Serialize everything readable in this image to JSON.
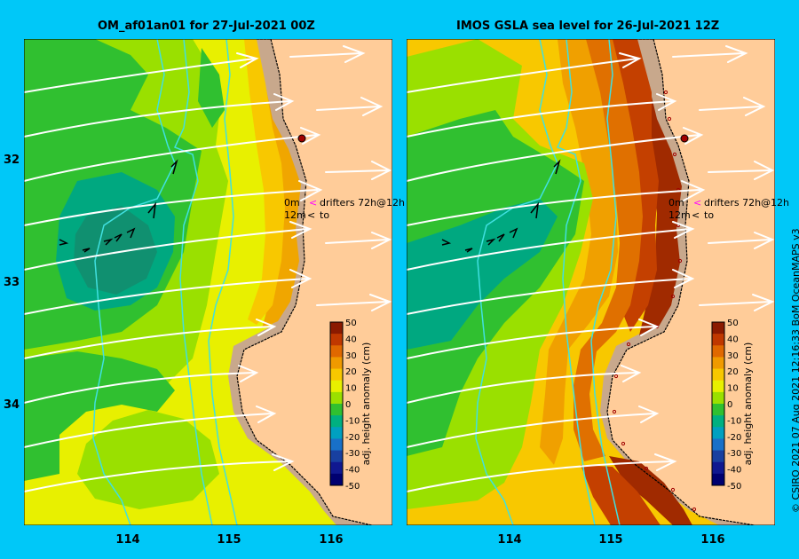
{
  "panels": [
    {
      "title": "OM_af01an01 for 27-Jul-2021 00Z"
    },
    {
      "title": "IMOS GSLA sea level  for 26-Jul-2021 12Z"
    }
  ],
  "lat_ticks": [
    "32",
    "33",
    "34"
  ],
  "lon_ticks": [
    "114",
    "115",
    "116"
  ],
  "legend": {
    "drifter_line1_value": "0m",
    "drifter_line1_text": "drifters 72h@12h",
    "drifter_line2_value": "12m",
    "drifter_line2_text": "to",
    "drifter_colors": {
      "line1": "#ff00ff",
      "line2": "#000000"
    }
  },
  "colorbar": {
    "label": "adj. height anomaly (cm)",
    "ticks": [
      "50",
      "40",
      "30",
      "20",
      "10",
      "0",
      "-10",
      "-20",
      "-30",
      "-40",
      "-50"
    ],
    "colors": [
      "#8b1a00",
      "#c03800",
      "#e06800",
      "#f09a00",
      "#f8c800",
      "#e8f000",
      "#9ae000",
      "#30c030",
      "#00b080",
      "#00a0c0",
      "#1870c8",
      "#1840a0",
      "#101890",
      "#000070"
    ]
  },
  "credit": "© CSIRO 2021   07 Aug 2021 12:16:33 BoM OceanMAPS v3",
  "colors": {
    "background": "#00c8f8",
    "land": "#ffcc99",
    "shelf": "#c8a88c",
    "current_vectors": "#ffffff",
    "contour_lines": "#40e0e0",
    "coast_dot": "#a00000"
  }
}
